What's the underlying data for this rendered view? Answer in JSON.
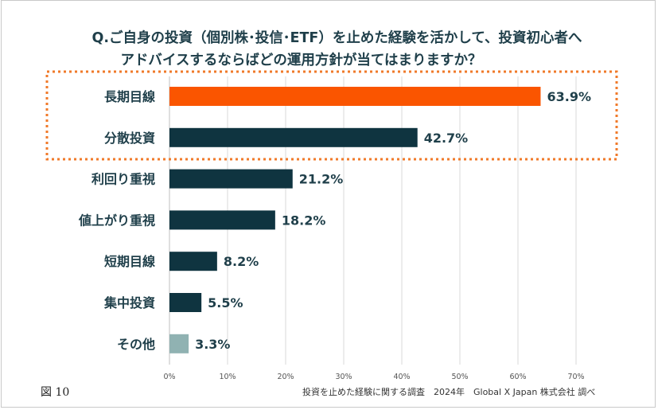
{
  "figure_label": "図 10",
  "source_note": "投資を止めた経験に関する調査　2024年　Global X Japan 株式会社 調べ",
  "chart_data": {
    "type": "bar",
    "orientation": "horizontal",
    "title_line1": "Q.ご自身の投資（個別株･投信･ETF）を止めた経験を活かして、投資初心者へ",
    "title_line2": "アドバイスするならばどの運用方針が当てはまりますか？",
    "categories": [
      "長期目線",
      "分散投資",
      "利回り重視",
      "値上がり重視",
      "短期目線",
      "集中投資",
      "その他"
    ],
    "values": [
      63.9,
      42.7,
      21.2,
      18.2,
      8.2,
      5.5,
      3.3
    ],
    "value_labels": [
      "63.9%",
      "42.7%",
      "21.2%",
      "18.2%",
      "8.2%",
      "5.5%",
      "3.3%"
    ],
    "xlim": [
      0,
      70
    ],
    "x_ticks": [
      0,
      10,
      20,
      30,
      40,
      50,
      60,
      70
    ],
    "x_tick_labels": [
      "0%",
      "10%",
      "20%",
      "30%",
      "40%",
      "50%",
      "60%",
      "70%"
    ],
    "grid": true,
    "colors": {
      "highlight": "#fa5500",
      "default": "#0f3440",
      "other": "#90b2b2",
      "highlight_box": "#f07a2a",
      "text": "#1f3f4a"
    },
    "bar_color_keys": [
      "highlight",
      "default",
      "default",
      "default",
      "default",
      "default",
      "other"
    ],
    "highlighted_categories": [
      "長期目線",
      "分散投資"
    ]
  }
}
